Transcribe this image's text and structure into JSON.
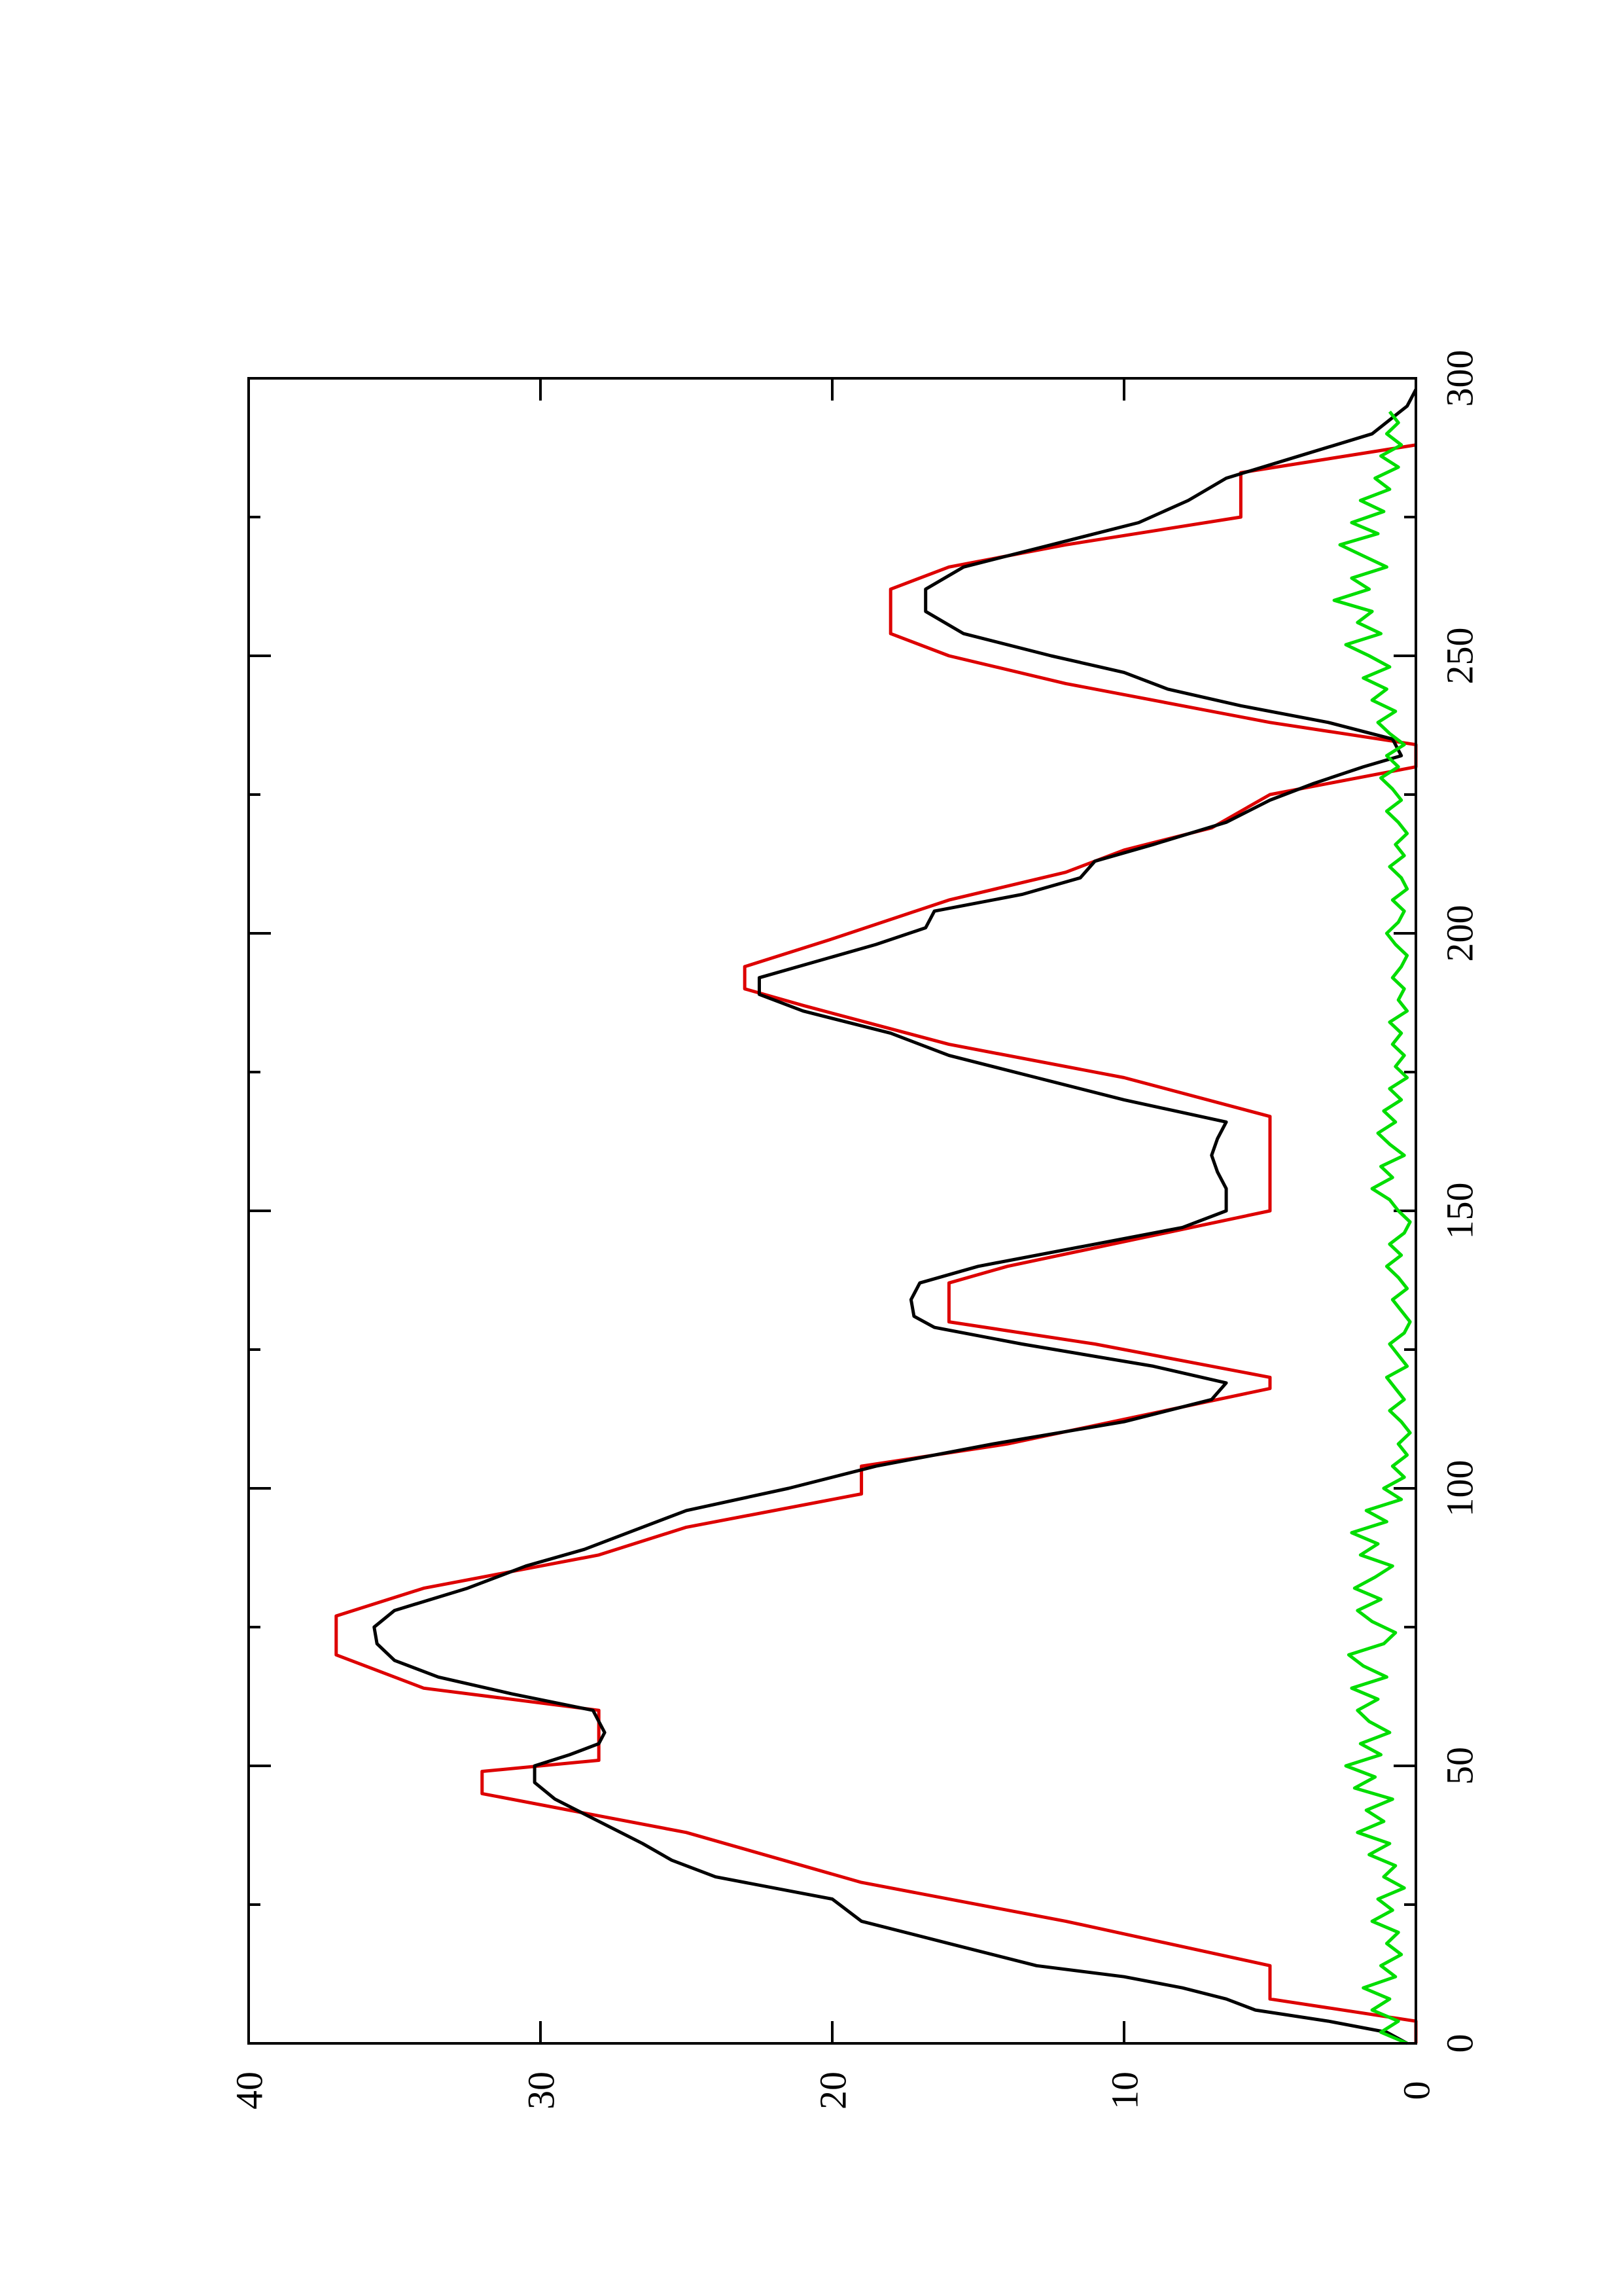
{
  "chart_data": {
    "type": "line",
    "orientation": "rotated-90-counterclockwise",
    "title": "",
    "xlabel": "",
    "ylabel": "",
    "xlim": [
      0,
      300
    ],
    "ylim": [
      0,
      40
    ],
    "grid": false,
    "legend": "none",
    "x_ticks": [
      {
        "value": 0,
        "label": "0"
      },
      {
        "value": 50,
        "label": "50"
      },
      {
        "value": 100,
        "label": "100"
      },
      {
        "value": 150,
        "label": "150"
      },
      {
        "value": 200,
        "label": "200"
      },
      {
        "value": 250,
        "label": "250"
      },
      {
        "value": 300,
        "label": "300"
      }
    ],
    "x_minor_ticks": [
      25,
      75,
      125,
      175,
      225,
      275
    ],
    "y_ticks": [
      {
        "value": 0,
        "label": "0"
      },
      {
        "value": 10,
        "label": "10"
      },
      {
        "value": 20,
        "label": "20"
      },
      {
        "value": 30,
        "label": "30"
      },
      {
        "value": 40,
        "label": "40"
      }
    ],
    "series": [
      {
        "color": "#dd0000",
        "x": [
          0,
          4,
          8,
          14,
          22,
          29,
          38,
          45,
          49,
          51,
          55,
          60,
          64,
          70,
          75,
          77,
          82,
          88,
          93,
          99,
          104,
          108,
          118,
          120,
          126,
          130,
          137,
          140,
          150,
          160,
          167,
          174,
          180,
          187,
          190,
          194,
          199,
          206,
          211,
          215,
          219,
          225,
          230,
          234,
          238,
          245,
          250,
          254,
          258,
          262,
          266,
          270,
          275,
          283,
          288
        ],
        "y": [
          0,
          0,
          5,
          5,
          12,
          19,
          25,
          32,
          32,
          28,
          28,
          28,
          34,
          37,
          37,
          37,
          34,
          28,
          25,
          19,
          19,
          14,
          5,
          5,
          11,
          16,
          16,
          14,
          5,
          5,
          5,
          10,
          16,
          21,
          23,
          23,
          20,
          16,
          12,
          10,
          7,
          5,
          0,
          0,
          5,
          12,
          16,
          18,
          18,
          18,
          16,
          12,
          6,
          6,
          0
        ]
      },
      {
        "color": "#000000",
        "x": [
          0,
          2,
          4,
          6,
          8,
          10,
          12,
          14,
          18,
          22,
          26,
          30,
          33,
          36,
          40,
          44,
          47,
          50,
          52,
          54,
          56,
          58,
          60,
          63,
          66,
          69,
          72,
          75,
          78,
          82,
          86,
          89,
          92,
          96,
          100,
          104,
          108,
          112,
          116,
          119,
          122,
          126,
          129,
          131,
          134,
          137,
          140,
          144,
          147,
          150,
          154,
          157,
          160,
          163,
          166,
          170,
          174,
          178,
          182,
          186,
          189,
          192,
          195,
          198,
          201,
          204,
          207,
          210,
          213,
          216,
          220,
          224,
          227,
          230,
          232,
          235,
          238,
          241,
          244,
          247,
          250,
          254,
          258,
          262,
          266,
          270,
          274,
          278,
          282,
          286,
          290,
          295,
          298
        ],
        "y": [
          0.3,
          1,
          3,
          5.5,
          6.5,
          8,
          10,
          13,
          16,
          19,
          20,
          24,
          25.5,
          26.5,
          28,
          29.5,
          30.2,
          30.2,
          29,
          28,
          27.8,
          28,
          28.2,
          31,
          33.5,
          35,
          35.6,
          35.7,
          35,
          32.5,
          30.5,
          28.5,
          27,
          25,
          21.5,
          18.5,
          14.5,
          10,
          7,
          6.5,
          9,
          13.5,
          16.5,
          17.2,
          17.3,
          17,
          15,
          11,
          8,
          6.5,
          6.5,
          6.8,
          7,
          6.8,
          6.5,
          10,
          13,
          16,
          18,
          21,
          22.5,
          22.5,
          20.5,
          18.5,
          16.8,
          16.5,
          13.5,
          11.5,
          11,
          9,
          6.5,
          5,
          3.5,
          1.8,
          0.5,
          0.8,
          3,
          6,
          8.5,
          10,
          12.5,
          15.5,
          16.8,
          16.8,
          15.5,
          12.5,
          9.5,
          7.8,
          6.5,
          4,
          1.5,
          0.3,
          0
        ]
      },
      {
        "color": "#00dd00",
        "x": [
          0,
          2,
          4,
          6,
          8,
          10,
          12,
          14,
          16,
          18,
          20,
          22,
          24,
          26,
          28,
          30,
          32,
          34,
          36,
          38,
          40,
          42,
          44,
          46,
          48,
          50,
          52,
          54,
          56,
          58,
          60,
          62,
          64,
          66,
          68,
          70,
          72,
          74,
          76,
          78,
          80,
          82,
          84,
          86,
          88,
          90,
          92,
          94,
          96,
          98,
          100,
          102,
          104,
          106,
          108,
          110,
          112,
          114,
          116,
          118,
          120,
          122,
          124,
          126,
          128,
          130,
          132,
          134,
          136,
          138,
          140,
          142,
          144,
          146,
          148,
          150,
          152,
          154,
          156,
          158,
          160,
          162,
          164,
          166,
          168,
          170,
          172,
          174,
          176,
          178,
          180,
          182,
          184,
          186,
          188,
          190,
          192,
          194,
          196,
          198,
          200,
          202,
          204,
          206,
          208,
          210,
          212,
          214,
          216,
          218,
          220,
          222,
          224,
          226,
          228,
          230,
          232,
          234,
          236,
          238,
          240,
          242,
          244,
          246,
          248,
          250,
          252,
          254,
          256,
          258,
          260,
          262,
          264,
          266,
          268,
          270,
          272,
          274,
          276,
          278,
          280,
          282,
          284,
          286,
          288,
          290,
          292,
          294
        ],
        "y": [
          0.3,
          1.2,
          0.6,
          1.5,
          0.9,
          1.8,
          0.7,
          1.2,
          0.5,
          1.0,
          0.6,
          1.5,
          0.8,
          1.3,
          0.4,
          1.1,
          0.7,
          1.6,
          0.9,
          2.0,
          1.1,
          1.7,
          0.8,
          2.1,
          1.4,
          2.4,
          1.2,
          1.9,
          0.9,
          1.6,
          2.0,
          1.3,
          2.2,
          1.0,
          1.8,
          2.3,
          1.1,
          0.7,
          1.5,
          2.0,
          1.2,
          2.1,
          1.4,
          0.8,
          1.9,
          1.3,
          2.2,
          1.0,
          1.7,
          0.5,
          1.1,
          0.4,
          0.8,
          0.3,
          0.6,
          0.2,
          0.5,
          0.9,
          0.4,
          0.7,
          1.0,
          0.3,
          0.6,
          0.9,
          0.4,
          0.2,
          0.5,
          0.8,
          0.3,
          0.6,
          1.0,
          0.5,
          0.9,
          0.4,
          0.2,
          0.6,
          0.9,
          1.5,
          0.8,
          1.2,
          0.4,
          0.9,
          1.3,
          0.7,
          1.1,
          0.5,
          0.9,
          0.3,
          0.7,
          0.4,
          0.8,
          0.5,
          0.9,
          0.3,
          0.6,
          0.4,
          0.8,
          0.5,
          0.3,
          0.7,
          1.0,
          0.6,
          0.4,
          0.8,
          0.3,
          0.5,
          0.9,
          0.4,
          0.7,
          0.3,
          0.6,
          1.0,
          0.5,
          0.8,
          1.2,
          0.6,
          1.0,
          0.4,
          0.9,
          1.3,
          0.7,
          1.5,
          1.0,
          1.8,
          0.9,
          1.6,
          2.4,
          1.2,
          2.0,
          1.5,
          2.8,
          1.6,
          2.2,
          1.0,
          1.8,
          2.6,
          1.3,
          2.2,
          1.1,
          1.9,
          0.9,
          1.4,
          0.6,
          1.2,
          0.5,
          1.0,
          0.6,
          0.9
        ]
      }
    ]
  }
}
